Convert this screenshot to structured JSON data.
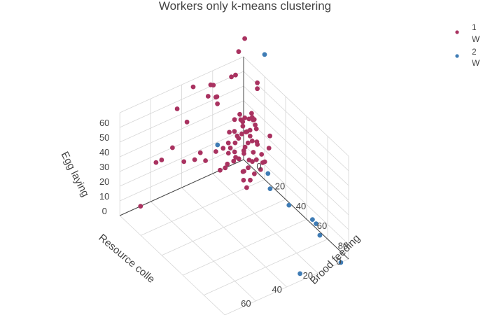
{
  "chart_data": {
    "type": "scatter3d",
    "title": "Workers only k-means clustering",
    "axes": {
      "x": {
        "label": "Brood feeding",
        "range": [
          0,
          100
        ],
        "ticks": [
          0,
          20,
          40,
          60,
          80
        ]
      },
      "y": {
        "label": "Resource colle",
        "range": [
          0,
          80
        ],
        "ticks": [
          0,
          20,
          40,
          60
        ]
      },
      "z": {
        "label": "Egg laying",
        "range": [
          0,
          70
        ],
        "ticks": [
          0,
          10,
          20,
          30,
          40,
          50,
          60
        ]
      }
    },
    "grid": true,
    "legend_position": "top-right",
    "series": [
      {
        "name": "1",
        "sublabel": "W",
        "color": "#a93260",
        "points": [
          {
            "x": 5,
            "y": 70,
            "z": 5
          },
          {
            "x": 5,
            "y": 60,
            "z": 30
          },
          {
            "x": 3,
            "y": 55,
            "z": 28
          },
          {
            "x": 3,
            "y": 48,
            "z": 33
          },
          {
            "x": 3,
            "y": 45,
            "z": 58
          },
          {
            "x": 8,
            "y": 38,
            "z": 73
          },
          {
            "x": 5,
            "y": 40,
            "z": 48
          },
          {
            "x": 8,
            "y": 25,
            "z": 68
          },
          {
            "x": 12,
            "y": 16,
            "z": 72
          },
          {
            "x": 4,
            "y": 24,
            "z": 65
          },
          {
            "x": 7,
            "y": 22,
            "z": 58
          },
          {
            "x": 6,
            "y": 27,
            "z": 60
          },
          {
            "x": 6,
            "y": 22,
            "z": 57
          },
          {
            "x": 6,
            "y": 21,
            "z": 52
          },
          {
            "x": 10,
            "y": 10,
            "z": 85
          },
          {
            "x": 4,
            "y": 2,
            "z": 86
          },
          {
            "x": 10,
            "y": 12,
            "z": 70
          },
          {
            "x": 16,
            "y": 2,
            "z": 64
          },
          {
            "x": 16,
            "y": 2,
            "z": 60
          },
          {
            "x": 5,
            "y": 42,
            "z": 22
          },
          {
            "x": 5,
            "y": 35,
            "z": 20
          },
          {
            "x": 3,
            "y": 30,
            "z": 21
          },
          {
            "x": 5,
            "y": 28,
            "z": 16
          },
          {
            "x": 6,
            "y": 22,
            "z": 20
          },
          {
            "x": 10,
            "y": 20,
            "z": 24
          },
          {
            "x": 12,
            "y": 18,
            "z": 28
          },
          {
            "x": 14,
            "y": 15,
            "z": 28
          },
          {
            "x": 10,
            "y": 16,
            "z": 33
          },
          {
            "x": 16,
            "y": 12,
            "z": 34
          },
          {
            "x": 14,
            "y": 10,
            "z": 37
          },
          {
            "x": 18,
            "y": 8,
            "z": 32
          },
          {
            "x": 20,
            "y": 8,
            "z": 30
          },
          {
            "x": 22,
            "y": 6,
            "z": 28
          },
          {
            "x": 16,
            "y": 8,
            "z": 26
          },
          {
            "x": 18,
            "y": 12,
            "z": 22
          },
          {
            "x": 20,
            "y": 10,
            "z": 18
          },
          {
            "x": 22,
            "y": 12,
            "z": 15
          },
          {
            "x": 25,
            "y": 10,
            "z": 12
          },
          {
            "x": 24,
            "y": 8,
            "z": 20
          },
          {
            "x": 26,
            "y": 6,
            "z": 24
          },
          {
            "x": 28,
            "y": 8,
            "z": 16
          },
          {
            "x": 16,
            "y": 16,
            "z": 20
          },
          {
            "x": 14,
            "y": 20,
            "z": 16
          },
          {
            "x": 12,
            "y": 20,
            "z": 12
          },
          {
            "x": 10,
            "y": 22,
            "z": 10
          },
          {
            "x": 22,
            "y": 15,
            "z": 8
          },
          {
            "x": 18,
            "y": 12,
            "z": 10
          },
          {
            "x": 20,
            "y": 14,
            "z": 12
          },
          {
            "x": 24,
            "y": 12,
            "z": 8
          },
          {
            "x": 25,
            "y": 15,
            "z": 5
          },
          {
            "x": 20,
            "y": 5,
            "z": 28
          },
          {
            "x": 18,
            "y": 4,
            "z": 35
          },
          {
            "x": 15,
            "y": 5,
            "z": 44
          },
          {
            "x": 14,
            "y": 6,
            "z": 40
          },
          {
            "x": 16,
            "y": 4,
            "z": 40
          },
          {
            "x": 12,
            "y": 10,
            "z": 40
          },
          {
            "x": 14,
            "y": 12,
            "z": 46
          },
          {
            "x": 12,
            "y": 14,
            "z": 42
          },
          {
            "x": 18,
            "y": 10,
            "z": 36
          },
          {
            "x": 20,
            "y": 12,
            "z": 38
          },
          {
            "x": 22,
            "y": 14,
            "z": 30
          },
          {
            "x": 16,
            "y": 15,
            "z": 34
          },
          {
            "x": 24,
            "y": 10,
            "z": 26
          },
          {
            "x": 26,
            "y": 12,
            "z": 22
          },
          {
            "x": 10,
            "y": 10,
            "z": 26
          },
          {
            "x": 8,
            "y": 14,
            "z": 20
          },
          {
            "x": 12,
            "y": 8,
            "z": 18
          },
          {
            "x": 30,
            "y": 4,
            "z": 30
          },
          {
            "x": 28,
            "y": 2,
            "z": 36
          },
          {
            "x": 26,
            "y": 4,
            "z": 18
          },
          {
            "x": 30,
            "y": 8,
            "z": 22
          },
          {
            "x": 12,
            "y": 4,
            "z": 30
          },
          {
            "x": 14,
            "y": 2,
            "z": 34
          },
          {
            "x": 18,
            "y": 6,
            "z": 42
          },
          {
            "x": 20,
            "y": 8,
            "z": 46
          },
          {
            "x": 15,
            "y": 20,
            "z": 24
          },
          {
            "x": 18,
            "y": 18,
            "z": 26
          },
          {
            "x": 20,
            "y": 20,
            "z": 22
          },
          {
            "x": 22,
            "y": 18,
            "z": 24
          },
          {
            "x": 6,
            "y": 10,
            "z": 28
          },
          {
            "x": 8,
            "y": 6,
            "z": 34
          },
          {
            "x": 10,
            "y": 6,
            "z": 38
          }
        ]
      },
      {
        "name": "2",
        "sublabel": "W",
        "color": "#3f7cb5",
        "points": [
          {
            "x": 100,
            "y": 5,
            "z": 0
          },
          {
            "x": 95,
            "y": 28,
            "z": 0
          },
          {
            "x": 80,
            "y": 5,
            "z": 5
          },
          {
            "x": 70,
            "y": 3,
            "z": 8
          },
          {
            "x": 72,
            "y": 2,
            "z": 6
          },
          {
            "x": 55,
            "y": 8,
            "z": 10
          },
          {
            "x": 40,
            "y": 10,
            "z": 12
          },
          {
            "x": 35,
            "y": 8,
            "z": 18
          },
          {
            "x": 20,
            "y": 0,
            "z": 85
          },
          {
            "x": 12,
            "y": 25,
            "z": 30
          }
        ]
      }
    ]
  }
}
